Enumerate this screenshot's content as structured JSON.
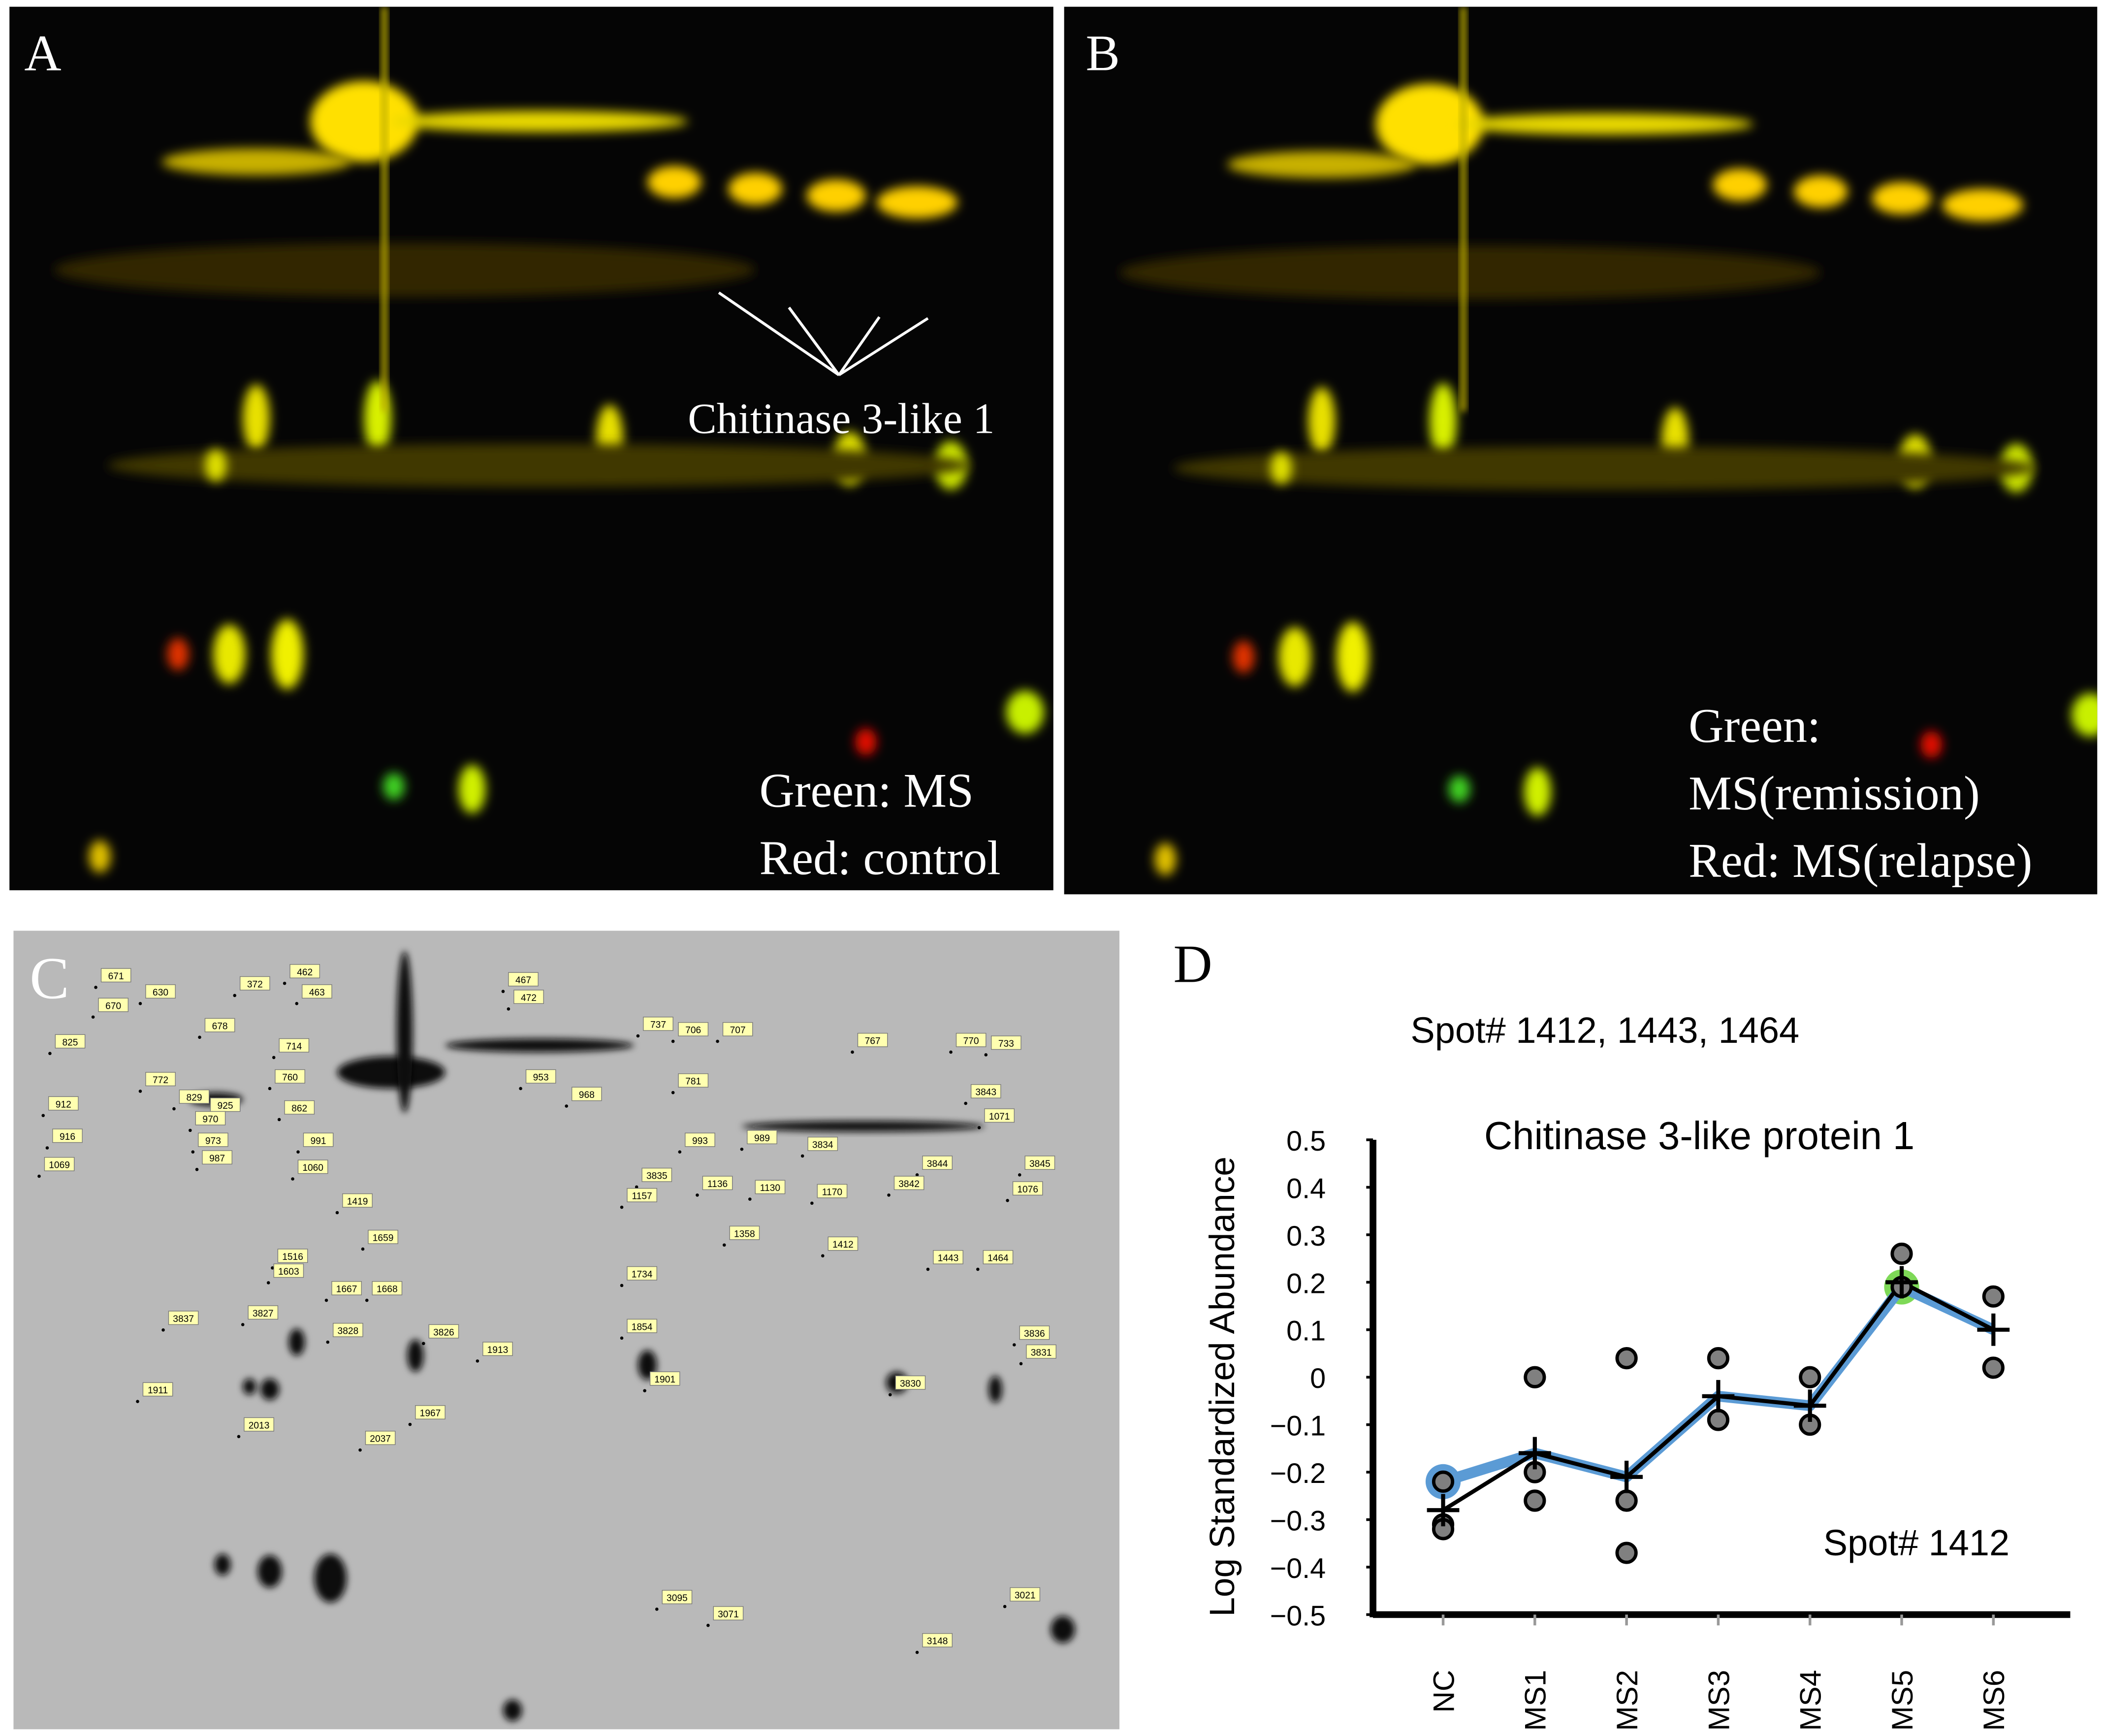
{
  "panels": {
    "a": {
      "label": "A",
      "annotation": "Chitinase 3-like 1",
      "legend": [
        "Green: MS",
        "Red: control"
      ]
    },
    "b": {
      "label": "B",
      "legend": [
        "Green:",
        "MS(remission)",
        "Red: MS(relapse)"
      ]
    },
    "c": {
      "label": "C",
      "spot_labels": [
        "671",
        "670",
        "630",
        "372",
        "462",
        "463",
        "467",
        "472",
        "678",
        "714",
        "737",
        "706",
        "707",
        "767",
        "770",
        "733",
        "825",
        "772",
        "760",
        "925",
        "829",
        "781",
        "953",
        "968",
        "3843",
        "912",
        "970",
        "862",
        "1071",
        "973",
        "991",
        "993",
        "989",
        "3834",
        "916",
        "987",
        "1060",
        "1069",
        "3844",
        "3845",
        "3835",
        "1136",
        "1130",
        "3842",
        "1157",
        "1170",
        "1076",
        "1419",
        "1358",
        "1659",
        "1412",
        "1443",
        "1464",
        "1516",
        "1603",
        "1667",
        "1668",
        "1734",
        "3837",
        "3827",
        "3828",
        "3826",
        "1913",
        "1854",
        "3836",
        "3831",
        "1911",
        "1901",
        "3830",
        "1967",
        "2013",
        "2037",
        "3095",
        "3071",
        "3021",
        "3148"
      ]
    }
  },
  "chart_data": {
    "type": "line",
    "panel_label": "D",
    "subtitle": "Spot# 1412, 1443, 1464",
    "title": "Chitinase 3-like protein 1",
    "y_label": "Log Standardized Abundance",
    "annotation": "Spot# 1412",
    "categories": [
      "NC",
      "MS1",
      "MS2",
      "MS3",
      "MS4",
      "MS5",
      "MS6"
    ],
    "series": [
      {
        "color": "#5b9bd5",
        "values": [
          -0.22,
          -0.16,
          -0.21,
          -0.04,
          -0.06,
          0.19,
          0.1
        ]
      },
      {
        "color": "#000000",
        "marker": "+",
        "values": [
          -0.28,
          -0.16,
          -0.21,
          -0.04,
          -0.06,
          0.2,
          0.1
        ]
      }
    ],
    "replicates": [
      [
        -0.22,
        -0.31,
        -0.32
      ],
      [
        0.0,
        -0.2,
        -0.26
      ],
      [
        0.04,
        -0.26,
        -0.37
      ],
      [
        0.04,
        -0.09
      ],
      [
        0.0,
        -0.1
      ],
      [
        0.26,
        0.19
      ],
      [
        0.17,
        0.02
      ]
    ],
    "replicate_color": "#808080",
    "highlights": [
      {
        "category": 0,
        "value": -0.22,
        "color": "#5b9bd5"
      },
      {
        "category": 5,
        "value": 0.19,
        "color": "#7ed957"
      }
    ],
    "ylim": [
      -0.5,
      0.5
    ],
    "yticks": [
      0.5,
      0.4,
      0.3,
      0.2,
      0.1,
      0,
      {
        "value": -0.1,
        "label": "−0.1"
      },
      {
        "value": -0.2,
        "label": "−0.2"
      },
      {
        "value": -0.3,
        "label": "−0.3"
      },
      {
        "value": -0.4,
        "label": "−0.4"
      },
      {
        "value": -0.5,
        "label": "−0.5"
      }
    ]
  }
}
